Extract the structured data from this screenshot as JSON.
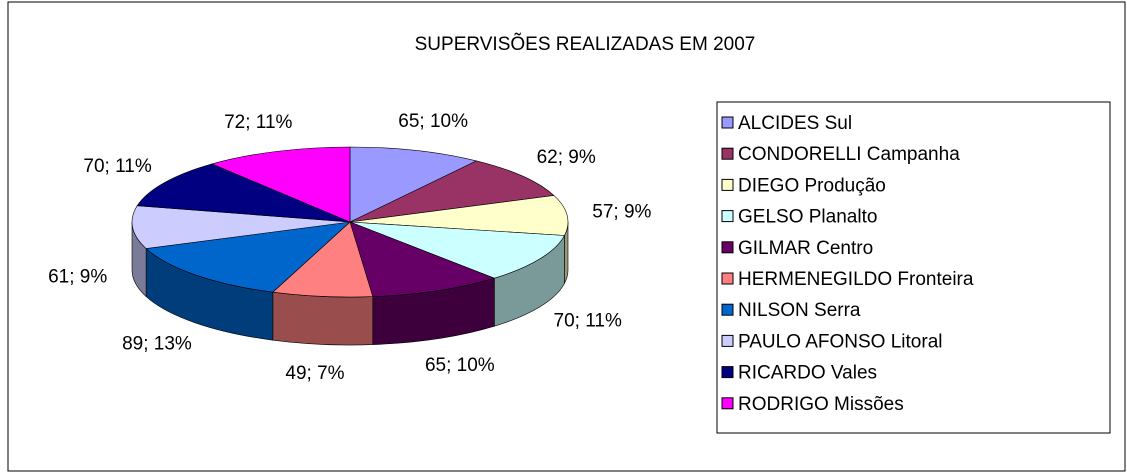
{
  "chart_data": {
    "type": "pie3d",
    "title": "SUPERVISÕES REALIZADAS EM 2007",
    "categories": [
      "ALCIDES Sul",
      "CONDORELLI Campanha",
      "DIEGO Produção",
      "GELSO Planalto",
      "GILMAR Centro",
      "HERMENEGILDO Fronteira",
      "NILSON Serra",
      "PAULO AFONSO Litoral",
      "RICARDO Vales",
      "RODRIGO Missões"
    ],
    "values": [
      65,
      62,
      57,
      70,
      65,
      49,
      89,
      61,
      70,
      72
    ],
    "value_labels": [
      "65; 10%",
      "62; 9%",
      "57; 9%",
      "70; 11%",
      "65; 10%",
      "49; 7%",
      "89; 13%",
      "61; 9%",
      "70; 11%",
      "72; 11%"
    ],
    "colors": [
      "#9999FF",
      "#993366",
      "#FFFFCC",
      "#CCFFFF",
      "#660066",
      "#FF8080",
      "#0066CC",
      "#CCCCFF",
      "#000080",
      "#FF00FF"
    ],
    "legend": "right"
  }
}
